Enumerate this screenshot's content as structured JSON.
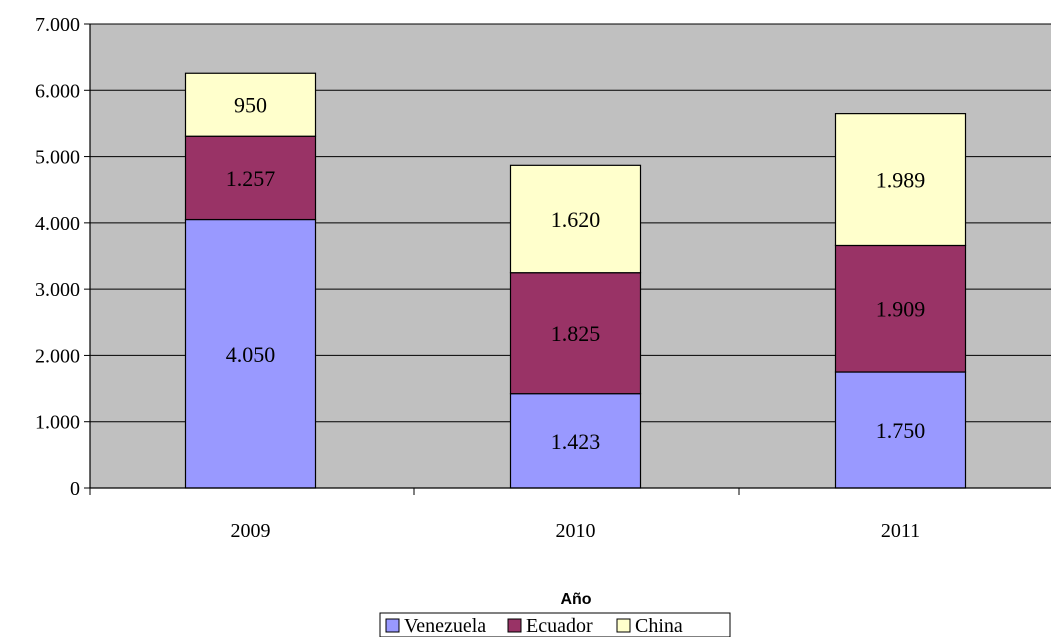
{
  "chart_data": {
    "type": "bar",
    "stacked": true,
    "title": "",
    "xlabel": "Año",
    "ylabel": "",
    "categories": [
      "2009",
      "2010",
      "2011"
    ],
    "series": [
      {
        "name": "Venezuela",
        "values": [
          4050,
          1423,
          1750
        ],
        "labels": [
          "4.050",
          "1.423",
          "1.750"
        ],
        "color": "#9999ff"
      },
      {
        "name": "Ecuador",
        "values": [
          1257,
          1825,
          1909
        ],
        "labels": [
          "1.257",
          "1.825",
          "1.909"
        ],
        "color": "#993366"
      },
      {
        "name": "China",
        "values": [
          950,
          1620,
          1989
        ],
        "labels": [
          "950",
          "1.620",
          "1.989"
        ],
        "color": "#ffffcc"
      }
    ],
    "ylim": [
      0,
      7000
    ],
    "yticks": [
      0,
      1000,
      2000,
      3000,
      4000,
      5000,
      6000,
      7000
    ],
    "ytick_labels": [
      "0",
      "1.000",
      "2.000",
      "3.000",
      "4.000",
      "5.000",
      "6.000",
      "7.000"
    ],
    "grid": true,
    "plot_background": "#c0c0c0",
    "legend_position": "bottom"
  }
}
